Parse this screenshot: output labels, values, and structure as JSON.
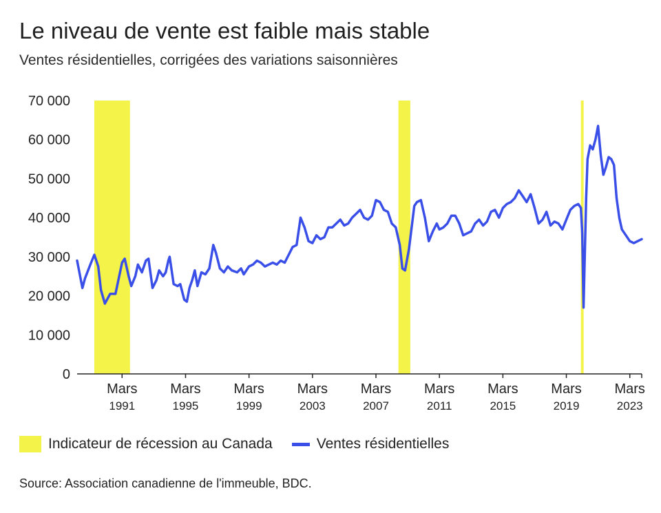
{
  "title": "Le niveau de vente est faible mais stable",
  "subtitle": "Ventes résidentielles, corrigées des variations saisonnières",
  "source": "Source: Association canadienne de l'immeuble, BDC.",
  "colors": {
    "line": "#3a4fe8",
    "recession": "#f4f34a",
    "axis": "#222222"
  },
  "legend": {
    "recession_label": "Indicateur de récession au Canada",
    "series_label": "Ventes résidentielles"
  },
  "chart_data": {
    "type": "line",
    "title": "Le niveau de vente est faible mais stable",
    "subtitle": "Ventes résidentielles, corrigées des variations saisonnières",
    "xlabel": "",
    "ylabel": "",
    "ylim": [
      0,
      70000
    ],
    "xlim": [
      "1988-05",
      "2023-12"
    ],
    "grid": false,
    "legend_position": "bottom",
    "y_ticks": [
      "0",
      "10 000",
      "20 000",
      "30 000",
      "40 000",
      "50 000",
      "60 000",
      "70 000"
    ],
    "x_ticks": [
      {
        "date": "1991-03",
        "month": "Mars",
        "year": "1991"
      },
      {
        "date": "1995-03",
        "month": "Mars",
        "year": "1995"
      },
      {
        "date": "1999-03",
        "month": "Mars",
        "year": "1999"
      },
      {
        "date": "2003-03",
        "month": "Mars",
        "year": "2003"
      },
      {
        "date": "2007-03",
        "month": "Mars",
        "year": "2007"
      },
      {
        "date": "2011-03",
        "month": "Mars",
        "year": "2011"
      },
      {
        "date": "2015-03",
        "month": "Mars",
        "year": "2015"
      },
      {
        "date": "2019-03",
        "month": "Mars",
        "year": "2019"
      },
      {
        "date": "2023-03",
        "month": "Mars",
        "year": "2023"
      }
    ],
    "recessions": [
      {
        "start": "1989-06",
        "end": "1991-09"
      },
      {
        "start": "2008-08",
        "end": "2009-05"
      },
      {
        "start": "2020-02",
        "end": "2020-04"
      }
    ],
    "series": [
      {
        "name": "Ventes résidentielles",
        "points": [
          [
            "1988-05",
            29000
          ],
          [
            "1988-09",
            22000
          ],
          [
            "1988-11",
            24500
          ],
          [
            "1989-03",
            28000
          ],
          [
            "1989-06",
            30500
          ],
          [
            "1989-09",
            27500
          ],
          [
            "1989-11",
            21500
          ],
          [
            "1990-02",
            18000
          ],
          [
            "1990-06",
            20500
          ],
          [
            "1990-10",
            20500
          ],
          [
            "1991-03",
            28500
          ],
          [
            "1991-05",
            29500
          ],
          [
            "1991-08",
            25000
          ],
          [
            "1991-10",
            22500
          ],
          [
            "1992-01",
            25000
          ],
          [
            "1992-03",
            28000
          ],
          [
            "1992-06",
            26000
          ],
          [
            "1992-09",
            29000
          ],
          [
            "1992-11",
            29500
          ],
          [
            "1993-02",
            22000
          ],
          [
            "1993-05",
            24000
          ],
          [
            "1993-07",
            26500
          ],
          [
            "1993-10",
            25000
          ],
          [
            "1993-12",
            26000
          ],
          [
            "1994-02",
            29000
          ],
          [
            "1994-03",
            30000
          ],
          [
            "1994-06",
            23000
          ],
          [
            "1994-09",
            22500
          ],
          [
            "1994-11",
            23000
          ],
          [
            "1995-02",
            19000
          ],
          [
            "1995-04",
            18500
          ],
          [
            "1995-06",
            22000
          ],
          [
            "1995-08",
            24000
          ],
          [
            "1995-10",
            26500
          ],
          [
            "1995-12",
            22500
          ],
          [
            "1996-03",
            26000
          ],
          [
            "1996-06",
            25500
          ],
          [
            "1996-09",
            27000
          ],
          [
            "1996-12",
            33000
          ],
          [
            "1997-02",
            31000
          ],
          [
            "1997-05",
            27000
          ],
          [
            "1997-08",
            26000
          ],
          [
            "1997-11",
            27500
          ],
          [
            "1998-02",
            26500
          ],
          [
            "1998-06",
            26000
          ],
          [
            "1998-09",
            27000
          ],
          [
            "1998-11",
            25500
          ],
          [
            "1999-03",
            27500
          ],
          [
            "1999-06",
            28000
          ],
          [
            "1999-09",
            29000
          ],
          [
            "1999-12",
            28500
          ],
          [
            "2000-03",
            27500
          ],
          [
            "2000-06",
            28000
          ],
          [
            "2000-09",
            28500
          ],
          [
            "2000-12",
            28000
          ],
          [
            "2001-03",
            29000
          ],
          [
            "2001-06",
            28500
          ],
          [
            "2001-09",
            30500
          ],
          [
            "2001-12",
            32500
          ],
          [
            "2002-03",
            33000
          ],
          [
            "2002-06",
            40000
          ],
          [
            "2002-09",
            37500
          ],
          [
            "2002-12",
            34000
          ],
          [
            "2003-03",
            33500
          ],
          [
            "2003-06",
            35500
          ],
          [
            "2003-09",
            34500
          ],
          [
            "2003-12",
            35000
          ],
          [
            "2004-03",
            37500
          ],
          [
            "2004-06",
            37500
          ],
          [
            "2004-09",
            38500
          ],
          [
            "2004-12",
            39500
          ],
          [
            "2005-03",
            38000
          ],
          [
            "2005-06",
            38500
          ],
          [
            "2005-09",
            40000
          ],
          [
            "2005-12",
            41000
          ],
          [
            "2006-03",
            42000
          ],
          [
            "2006-06",
            40000
          ],
          [
            "2006-09",
            39500
          ],
          [
            "2006-12",
            40500
          ],
          [
            "2007-03",
            44500
          ],
          [
            "2007-06",
            44000
          ],
          [
            "2007-09",
            42000
          ],
          [
            "2007-12",
            41500
          ],
          [
            "2008-03",
            38500
          ],
          [
            "2008-06",
            37500
          ],
          [
            "2008-09",
            33000
          ],
          [
            "2008-11",
            27000
          ],
          [
            "2009-01",
            26500
          ],
          [
            "2009-04",
            32000
          ],
          [
            "2009-08",
            43000
          ],
          [
            "2009-10",
            44000
          ],
          [
            "2010-01",
            44500
          ],
          [
            "2010-04",
            40000
          ],
          [
            "2010-07",
            34000
          ],
          [
            "2010-10",
            36500
          ],
          [
            "2011-01",
            38500
          ],
          [
            "2011-03",
            37000
          ],
          [
            "2011-06",
            37500
          ],
          [
            "2011-09",
            38500
          ],
          [
            "2011-12",
            40500
          ],
          [
            "2012-03",
            40500
          ],
          [
            "2012-06",
            38500
          ],
          [
            "2012-09",
            35500
          ],
          [
            "2012-12",
            36000
          ],
          [
            "2013-03",
            36500
          ],
          [
            "2013-06",
            38500
          ],
          [
            "2013-09",
            39500
          ],
          [
            "2013-12",
            38000
          ],
          [
            "2014-03",
            39000
          ],
          [
            "2014-06",
            41500
          ],
          [
            "2014-09",
            42000
          ],
          [
            "2014-12",
            40000
          ],
          [
            "2015-03",
            42500
          ],
          [
            "2015-06",
            43500
          ],
          [
            "2015-09",
            44000
          ],
          [
            "2015-12",
            45000
          ],
          [
            "2016-03",
            47000
          ],
          [
            "2016-06",
            45500
          ],
          [
            "2016-09",
            44000
          ],
          [
            "2016-12",
            46000
          ],
          [
            "2017-03",
            42500
          ],
          [
            "2017-06",
            38500
          ],
          [
            "2017-09",
            39500
          ],
          [
            "2017-12",
            41500
          ],
          [
            "2018-03",
            38000
          ],
          [
            "2018-06",
            39000
          ],
          [
            "2018-09",
            38500
          ],
          [
            "2018-12",
            37000
          ],
          [
            "2019-03",
            39500
          ],
          [
            "2019-06",
            42000
          ],
          [
            "2019-09",
            43000
          ],
          [
            "2019-12",
            43500
          ],
          [
            "2020-02",
            42500
          ],
          [
            "2020-03",
            36000
          ],
          [
            "2020-04",
            17000
          ],
          [
            "2020-05",
            31000
          ],
          [
            "2020-06",
            45000
          ],
          [
            "2020-07",
            55000
          ],
          [
            "2020-09",
            58500
          ],
          [
            "2020-11",
            57500
          ],
          [
            "2021-01",
            60000
          ],
          [
            "2021-03",
            63500
          ],
          [
            "2021-05",
            56000
          ],
          [
            "2021-07",
            51000
          ],
          [
            "2021-09",
            53000
          ],
          [
            "2021-11",
            55500
          ],
          [
            "2022-01",
            55000
          ],
          [
            "2022-03",
            53500
          ],
          [
            "2022-05",
            45000
          ],
          [
            "2022-07",
            40000
          ],
          [
            "2022-09",
            37000
          ],
          [
            "2022-12",
            35500
          ],
          [
            "2023-03",
            34000
          ],
          [
            "2023-06",
            33500
          ],
          [
            "2023-09",
            34000
          ],
          [
            "2023-12",
            34500
          ]
        ]
      }
    ]
  }
}
